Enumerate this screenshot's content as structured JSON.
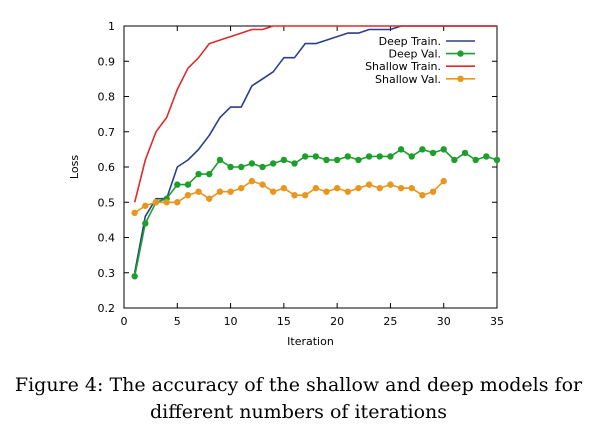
{
  "chart_data": {
    "type": "line",
    "title": "",
    "xlabel": "Iteration",
    "ylabel": "Loss",
    "xlim": [
      0,
      35
    ],
    "ylim": [
      0.2,
      1.0
    ],
    "xticks": [
      0,
      5,
      10,
      15,
      20,
      25,
      30,
      35
    ],
    "yticks": [
      0.2,
      0.3,
      0.4,
      0.5,
      0.6,
      0.7,
      0.8,
      0.9,
      1
    ],
    "grid": false,
    "legend_position": "top-right",
    "series": [
      {
        "name": "Deep Train.",
        "color": "#2a3f8a",
        "marker": "none",
        "x": [
          1,
          2,
          3,
          4,
          5,
          6,
          7,
          8,
          9,
          10,
          11,
          12,
          13,
          14,
          15,
          16,
          17,
          18,
          19,
          20,
          21,
          22,
          23,
          24,
          25,
          26,
          27,
          28,
          29,
          30,
          31,
          32,
          33,
          34,
          35
        ],
        "values": [
          0.3,
          0.46,
          0.51,
          0.51,
          0.6,
          0.62,
          0.65,
          0.69,
          0.74,
          0.77,
          0.77,
          0.83,
          0.85,
          0.87,
          0.91,
          0.91,
          0.95,
          0.95,
          0.96,
          0.97,
          0.98,
          0.98,
          0.99,
          0.99,
          0.99,
          1.0,
          1.0,
          1.0,
          1.0,
          1.0,
          1.0,
          1.0,
          1.0,
          1.0,
          1.0
        ]
      },
      {
        "name": "Deep Val.",
        "color": "#1e9e2c",
        "marker": "circle",
        "x": [
          1,
          2,
          3,
          4,
          5,
          6,
          7,
          8,
          9,
          10,
          11,
          12,
          13,
          14,
          15,
          16,
          17,
          18,
          19,
          20,
          21,
          22,
          23,
          24,
          25,
          26,
          27,
          28,
          29,
          30,
          31,
          32,
          33,
          34,
          35
        ],
        "values": [
          0.29,
          0.44,
          0.5,
          0.51,
          0.55,
          0.55,
          0.58,
          0.58,
          0.62,
          0.6,
          0.6,
          0.61,
          0.6,
          0.61,
          0.62,
          0.61,
          0.63,
          0.63,
          0.62,
          0.62,
          0.63,
          0.62,
          0.63,
          0.63,
          0.63,
          0.65,
          0.63,
          0.65,
          0.64,
          0.65,
          0.62,
          0.64,
          0.62,
          0.63,
          0.62
        ]
      },
      {
        "name": "Shallow Train.",
        "color": "#e02a2a",
        "marker": "none",
        "x": [
          1,
          2,
          3,
          4,
          5,
          6,
          7,
          8,
          9,
          10,
          11,
          12,
          13,
          14,
          15,
          16,
          17,
          18,
          19,
          20,
          21,
          22,
          23,
          24,
          25,
          26,
          27,
          28,
          29,
          30,
          31,
          32,
          33,
          34,
          35
        ],
        "values": [
          0.5,
          0.62,
          0.7,
          0.74,
          0.82,
          0.88,
          0.91,
          0.95,
          0.96,
          0.97,
          0.98,
          0.99,
          0.99,
          1.0,
          1.0,
          1.0,
          1.0,
          1.0,
          1.0,
          1.0,
          1.0,
          1.0,
          1.0,
          1.0,
          1.0,
          1.0,
          1.0,
          1.0,
          1.0,
          1.0,
          1.0,
          1.0,
          1.0,
          1.0,
          1.0
        ]
      },
      {
        "name": "Shallow Val.",
        "color": "#e8961e",
        "marker": "circle",
        "x": [
          1,
          2,
          3,
          4,
          5,
          6,
          7,
          8,
          9,
          10,
          11,
          12,
          13,
          14,
          15,
          16,
          17,
          18,
          19,
          20,
          21,
          22,
          23,
          24,
          25,
          26,
          27,
          28,
          29,
          30
        ],
        "values": [
          0.47,
          0.49,
          0.5,
          0.5,
          0.5,
          0.52,
          0.53,
          0.51,
          0.53,
          0.53,
          0.54,
          0.56,
          0.55,
          0.53,
          0.54,
          0.52,
          0.52,
          0.54,
          0.53,
          0.54,
          0.53,
          0.54,
          0.55,
          0.54,
          0.55,
          0.54,
          0.54,
          0.52,
          0.53,
          0.56
        ]
      }
    ]
  },
  "caption": {
    "line1": "Figure 4: The accuracy of the shallow and deep models for",
    "line2": "different numbers of iterations"
  }
}
